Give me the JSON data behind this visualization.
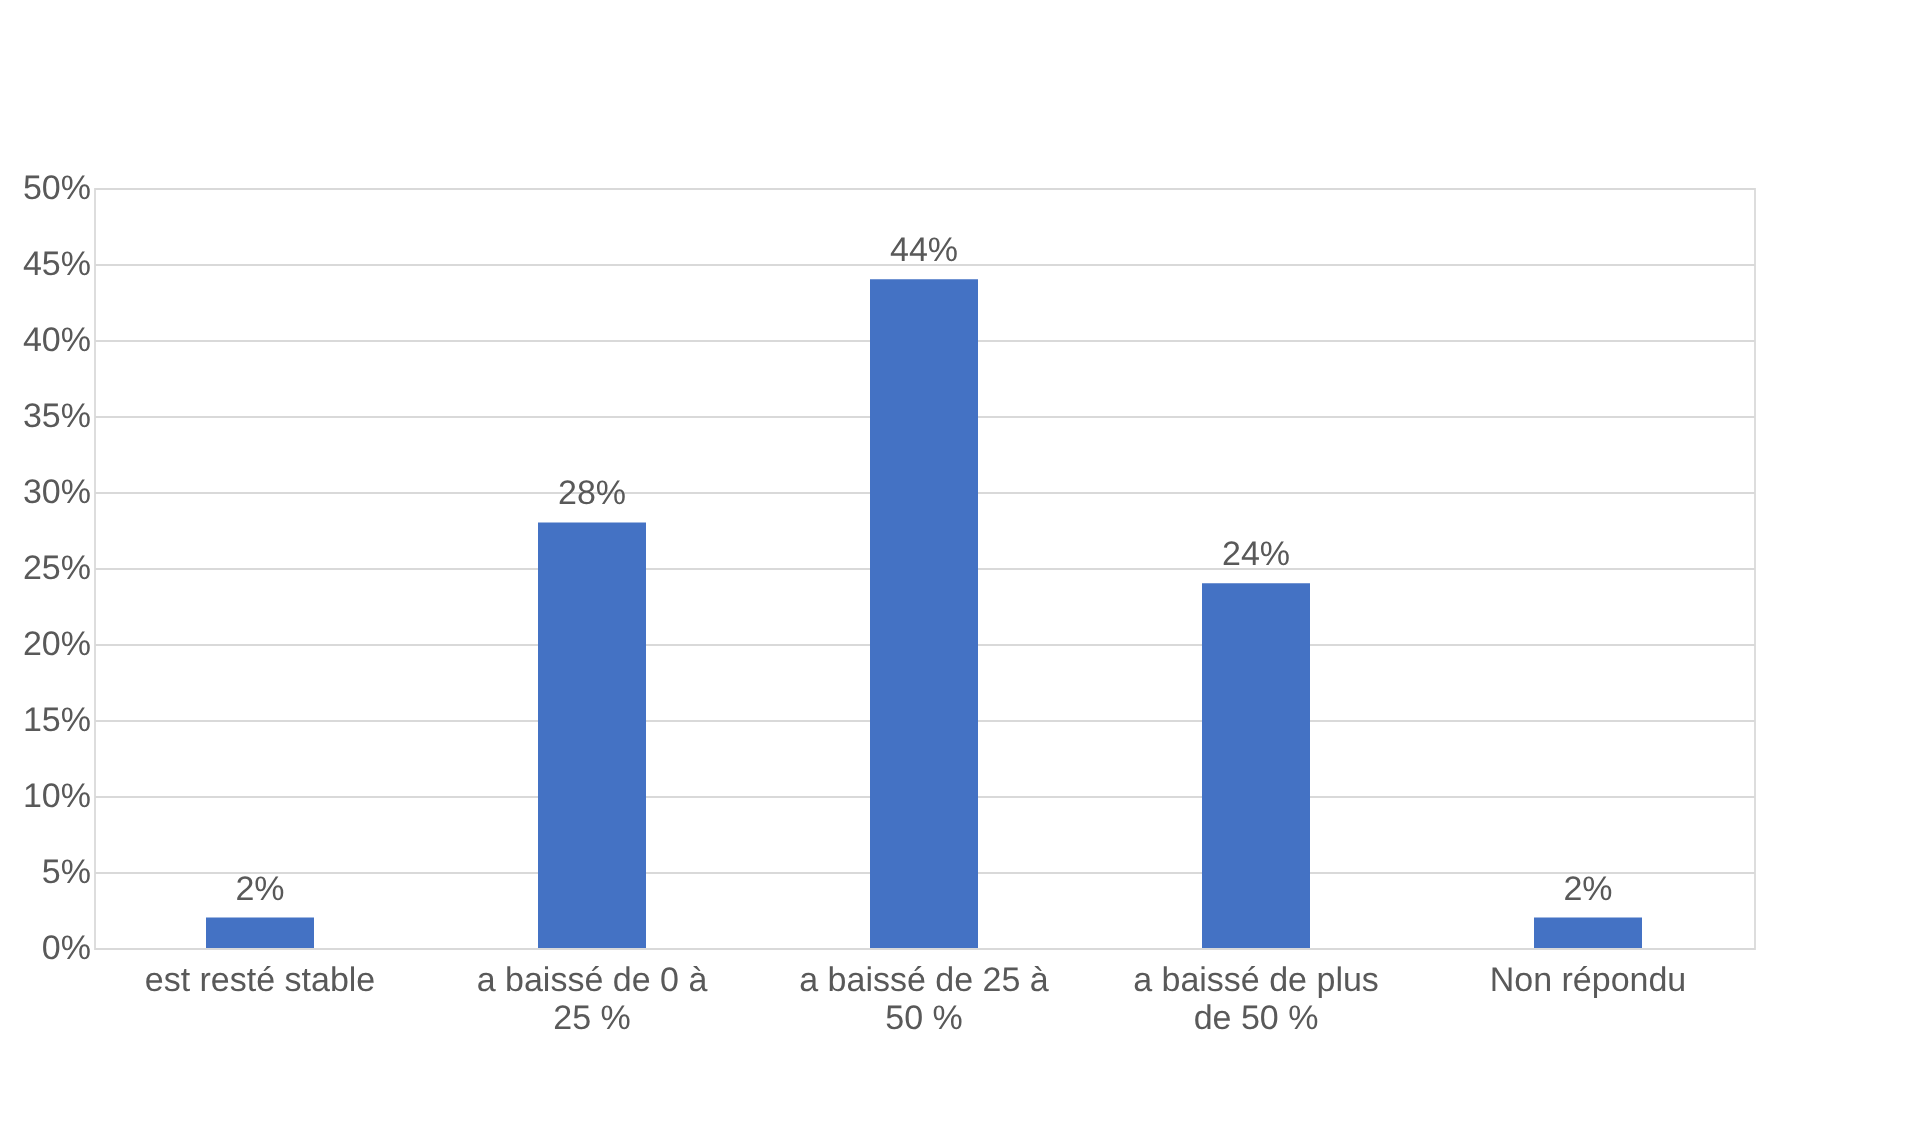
{
  "chart_data": {
    "type": "bar",
    "categories": [
      "est resté stable",
      "a baissé de 0 à 25 %",
      "a baissé de 25 à 50 %",
      "a baissé de plus de 50 %",
      "Non répondu"
    ],
    "values": [
      2,
      28,
      44,
      24,
      2
    ],
    "value_labels": [
      "2%",
      "28%",
      "44%",
      "24%",
      "2%"
    ],
    "color": "#4472c4",
    "ylim": [
      0,
      50
    ],
    "yticks": [
      {
        "value": 0,
        "label": "0%"
      },
      {
        "value": 5,
        "label": "5%"
      },
      {
        "value": 10,
        "label": "10%"
      },
      {
        "value": 15,
        "label": "15%"
      },
      {
        "value": 20,
        "label": "20%"
      },
      {
        "value": 25,
        "label": "25%"
      },
      {
        "value": 30,
        "label": "30%"
      },
      {
        "value": 35,
        "label": "35%"
      },
      {
        "value": 40,
        "label": "40%"
      },
      {
        "value": 45,
        "label": "45%"
      },
      {
        "value": 50,
        "label": "50%"
      }
    ],
    "grid": "y",
    "legend": false
  }
}
